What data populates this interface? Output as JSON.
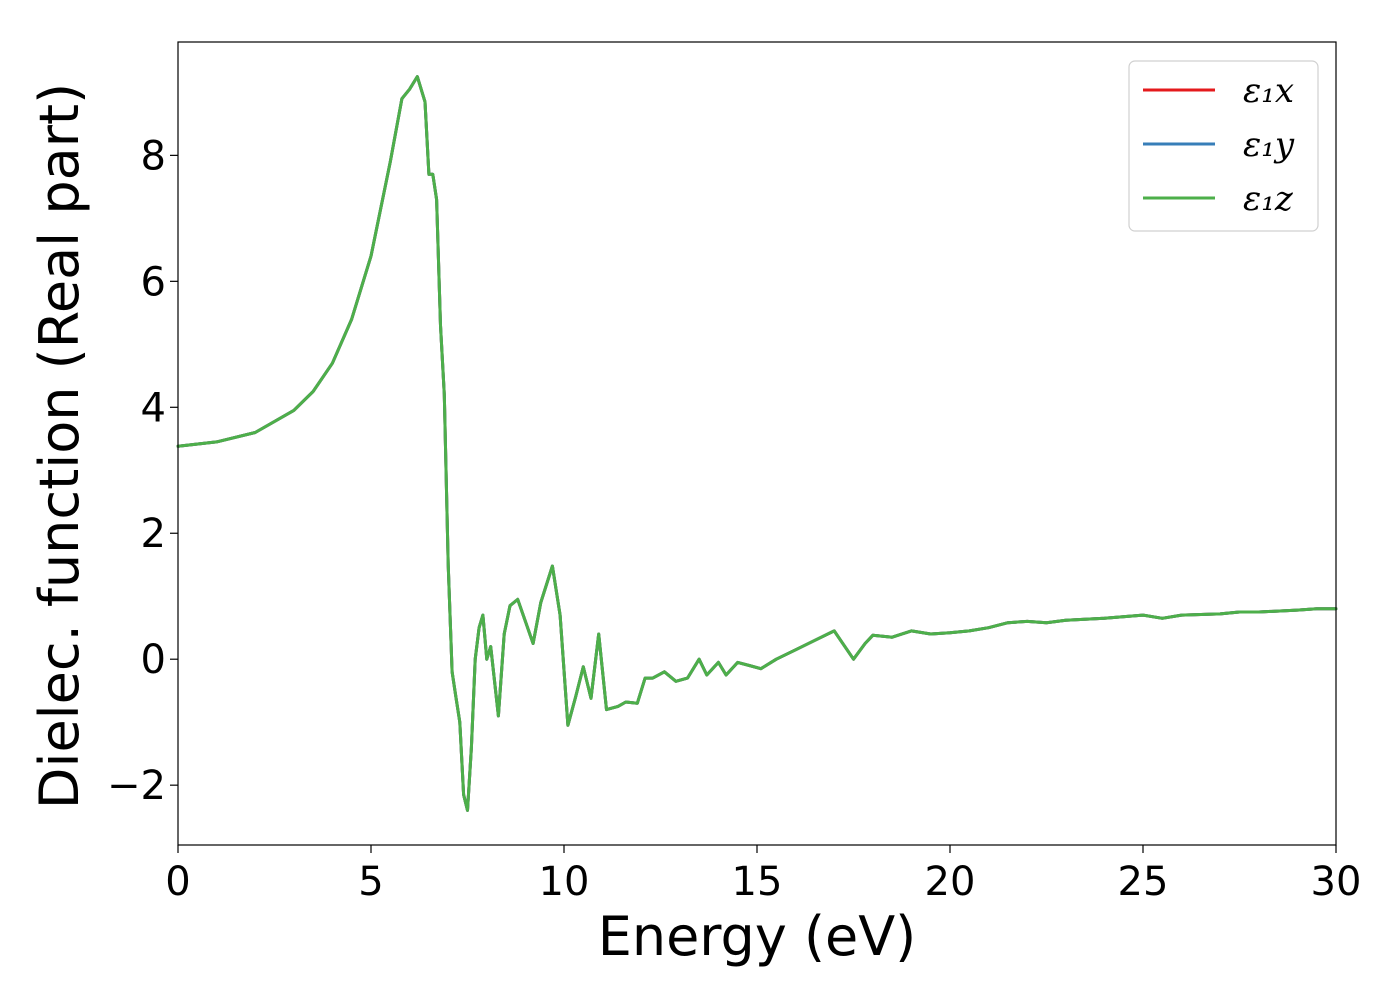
{
  "chart_data": {
    "type": "line",
    "xlabel": "Energy (eV)",
    "ylabel": "Dielec. function (Real part)",
    "xlim": [
      0,
      30
    ],
    "ylim": [
      -2.95,
      9.8
    ],
    "xticks": [
      0,
      5,
      10,
      15,
      20,
      25,
      30
    ],
    "xtick_labels": [
      "0",
      "5",
      "10",
      "15",
      "20",
      "25",
      "30"
    ],
    "yticks": [
      -2,
      0,
      2,
      4,
      6,
      8
    ],
    "ytick_labels": [
      "−2",
      "0",
      "2",
      "4",
      "6",
      "8"
    ],
    "grid": false,
    "legend_position": "top-right",
    "series": [
      {
        "name": "ε₁x",
        "color": "#e41a1c"
      },
      {
        "name": "ε₁y",
        "color": "#377eb8"
      },
      {
        "name": "ε₁z",
        "color": "#4daf4a"
      }
    ],
    "x": [
      0,
      1,
      2,
      3,
      3.5,
      4,
      4.5,
      5,
      5.5,
      5.8,
      6.0,
      6.2,
      6.4,
      6.5,
      6.6,
      6.7,
      6.8,
      6.9,
      7.0,
      7.1,
      7.2,
      7.3,
      7.4,
      7.5,
      7.6,
      7.7,
      7.8,
      7.9,
      8.0,
      8.1,
      8.3,
      8.45,
      8.6,
      8.8,
      9.0,
      9.2,
      9.4,
      9.7,
      9.9,
      10.1,
      10.3,
      10.5,
      10.7,
      10.9,
      11.1,
      11.4,
      11.6,
      11.9,
      12.1,
      12.3,
      12.6,
      12.9,
      13.2,
      13.5,
      13.7,
      14.0,
      14.2,
      14.5,
      14.8,
      15.1,
      15.5,
      16.0,
      16.5,
      17.0,
      17.5,
      17.8,
      18.0,
      18.5,
      19.0,
      19.5,
      20.0,
      20.5,
      21.0,
      21.5,
      22.0,
      22.5,
      23.0,
      24.0,
      25.0,
      25.5,
      26.0,
      27.0,
      27.5,
      28.0,
      29.0,
      29.5,
      30.0
    ],
    "values": [
      3.38,
      3.45,
      3.6,
      3.95,
      4.25,
      4.7,
      5.4,
      6.4,
      7.9,
      8.9,
      9.05,
      9.25,
      8.85,
      7.7,
      7.7,
      7.3,
      5.3,
      4.2,
      1.5,
      -0.2,
      -0.6,
      -1.0,
      -2.15,
      -2.4,
      -1.4,
      0.0,
      0.5,
      0.7,
      0.0,
      0.2,
      -0.9,
      0.4,
      0.85,
      0.95,
      0.6,
      0.25,
      0.9,
      1.48,
      0.7,
      -1.05,
      -0.6,
      -0.12,
      -0.62,
      0.4,
      -0.8,
      -0.75,
      -0.68,
      -0.7,
      -0.3,
      -0.3,
      -0.2,
      -0.35,
      -0.3,
      0.0,
      -0.25,
      -0.05,
      -0.25,
      -0.05,
      -0.1,
      -0.15,
      0.0,
      0.15,
      0.3,
      0.45,
      0.0,
      0.25,
      0.38,
      0.35,
      0.45,
      0.4,
      0.42,
      0.45,
      0.5,
      0.58,
      0.6,
      0.58,
      0.62,
      0.65,
      0.7,
      0.65,
      0.7,
      0.72,
      0.75,
      0.75,
      0.78,
      0.8,
      0.8
    ]
  }
}
